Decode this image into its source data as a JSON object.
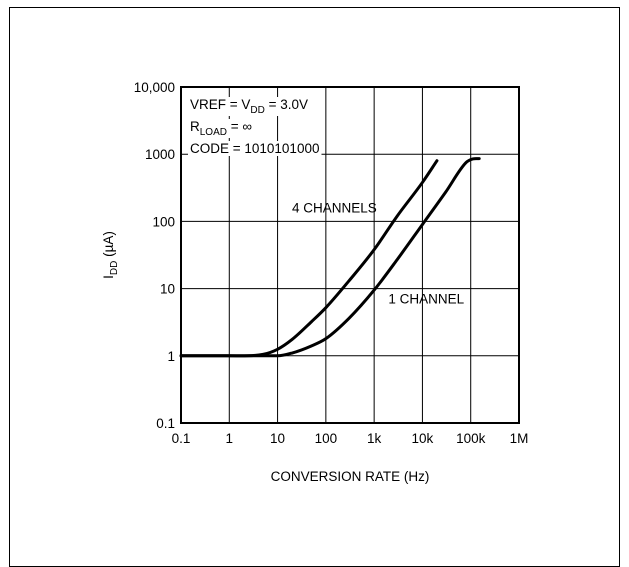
{
  "chart_data": {
    "type": "line",
    "x_scale": "log",
    "y_scale": "log",
    "xlabel": "CONVERSION RATE (Hz)",
    "ylabel": {
      "base": "I",
      "sub": "DD",
      "rest": " (µA)"
    },
    "xlim": [
      0.1,
      1000000
    ],
    "ylim": [
      0.1,
      10000
    ],
    "grid": true,
    "x_ticks": [
      {
        "value": 0.1,
        "label": "0.1"
      },
      {
        "value": 1,
        "label": "1"
      },
      {
        "value": 10,
        "label": "10"
      },
      {
        "value": 100,
        "label": "100"
      },
      {
        "value": 1000,
        "label": "1k"
      },
      {
        "value": 10000,
        "label": "10k"
      },
      {
        "value": 100000,
        "label": "100k"
      },
      {
        "value": 1000000,
        "label": "1M"
      }
    ],
    "y_ticks": [
      {
        "value": 0.1,
        "label": "0.1"
      },
      {
        "value": 1,
        "label": "1"
      },
      {
        "value": 10,
        "label": "10"
      },
      {
        "value": 100,
        "label": "100"
      },
      {
        "value": 1000,
        "label": "1000"
      },
      {
        "value": 10000,
        "label": "10,000"
      }
    ],
    "conditions": {
      "line1": {
        "a": "VREF = V",
        "sub": "DD",
        "b": " = 3.0V"
      },
      "line2": {
        "a": "R",
        "sub": "LOAD",
        "b": " = ∞"
      },
      "line3": "CODE = 1010101000"
    },
    "series": [
      {
        "name": "4 CHANNELS",
        "x": [
          0.1,
          1,
          5,
          10,
          20,
          50,
          100,
          300,
          1000,
          3000,
          10000,
          20000
        ],
        "y": [
          1,
          1,
          1.05,
          1.25,
          1.75,
          3.2,
          5.2,
          13,
          38,
          120,
          380,
          800
        ]
      },
      {
        "name": "1 CHANNEL",
        "x": [
          0.1,
          1,
          10,
          20,
          50,
          100,
          300,
          1000,
          3000,
          10000,
          30000,
          80000,
          110000,
          150000
        ],
        "y": [
          1,
          1,
          1,
          1.1,
          1.4,
          1.8,
          3.6,
          9.5,
          27,
          90,
          270,
          750,
          850,
          860
        ]
      }
    ],
    "series_label_positions": {
      "4 CHANNELS": {
        "x": 150,
        "y": 135
      },
      "1 CHANNEL": {
        "x": 12000,
        "y": 6
      }
    }
  }
}
